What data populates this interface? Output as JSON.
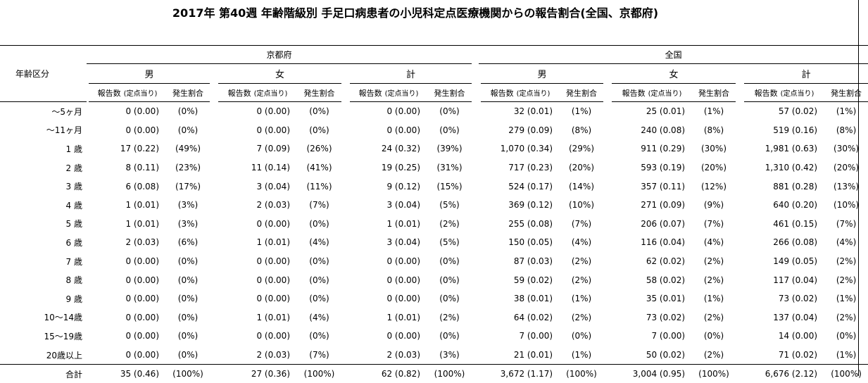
{
  "title": "2017年 第40週 年齢階級別 手足口病患者の小児科定点医療機関からの報告割合(全国、京都府)",
  "header": {
    "age_col": "年齢区分",
    "regions": [
      "京都府",
      "全国"
    ],
    "sexes": [
      "男",
      "女",
      "計"
    ],
    "count_col": "報告数",
    "count_note": "(定点当り)",
    "ratio_col": "発生割合"
  },
  "rows": [
    {
      "age": "〜5ヶ月",
      "kyoto": [
        [
          "0 (0.00)",
          "(0%)"
        ],
        [
          "0 (0.00)",
          "(0%)"
        ],
        [
          "0 (0.00)",
          "(0%)"
        ]
      ],
      "national": [
        [
          "32 (0.01)",
          "(1%)"
        ],
        [
          "25 (0.01)",
          "(1%)"
        ],
        [
          "57 (0.02)",
          "(1%)"
        ]
      ]
    },
    {
      "age": "〜11ヶ月",
      "kyoto": [
        [
          "0 (0.00)",
          "(0%)"
        ],
        [
          "0 (0.00)",
          "(0%)"
        ],
        [
          "0 (0.00)",
          "(0%)"
        ]
      ],
      "national": [
        [
          "279 (0.09)",
          "(8%)"
        ],
        [
          "240 (0.08)",
          "(8%)"
        ],
        [
          "519 (0.16)",
          "(8%)"
        ]
      ]
    },
    {
      "age": "1 歳",
      "kyoto": [
        [
          "17 (0.22)",
          "(49%)"
        ],
        [
          "7 (0.09)",
          "(26%)"
        ],
        [
          "24 (0.32)",
          "(39%)"
        ]
      ],
      "national": [
        [
          "1,070 (0.34)",
          "(29%)"
        ],
        [
          "911 (0.29)",
          "(30%)"
        ],
        [
          "1,981 (0.63)",
          "(30%)"
        ]
      ]
    },
    {
      "age": "2 歳",
      "kyoto": [
        [
          "8 (0.11)",
          "(23%)"
        ],
        [
          "11 (0.14)",
          "(41%)"
        ],
        [
          "19 (0.25)",
          "(31%)"
        ]
      ],
      "national": [
        [
          "717 (0.23)",
          "(20%)"
        ],
        [
          "593 (0.19)",
          "(20%)"
        ],
        [
          "1,310 (0.42)",
          "(20%)"
        ]
      ]
    },
    {
      "age": "3 歳",
      "kyoto": [
        [
          "6 (0.08)",
          "(17%)"
        ],
        [
          "3 (0.04)",
          "(11%)"
        ],
        [
          "9 (0.12)",
          "(15%)"
        ]
      ],
      "national": [
        [
          "524 (0.17)",
          "(14%)"
        ],
        [
          "357 (0.11)",
          "(12%)"
        ],
        [
          "881 (0.28)",
          "(13%)"
        ]
      ]
    },
    {
      "age": "4 歳",
      "kyoto": [
        [
          "1 (0.01)",
          "(3%)"
        ],
        [
          "2 (0.03)",
          "(7%)"
        ],
        [
          "3 (0.04)",
          "(5%)"
        ]
      ],
      "national": [
        [
          "369 (0.12)",
          "(10%)"
        ],
        [
          "271 (0.09)",
          "(9%)"
        ],
        [
          "640 (0.20)",
          "(10%)"
        ]
      ]
    },
    {
      "age": "5 歳",
      "kyoto": [
        [
          "1 (0.01)",
          "(3%)"
        ],
        [
          "0 (0.00)",
          "(0%)"
        ],
        [
          "1 (0.01)",
          "(2%)"
        ]
      ],
      "national": [
        [
          "255 (0.08)",
          "(7%)"
        ],
        [
          "206 (0.07)",
          "(7%)"
        ],
        [
          "461 (0.15)",
          "(7%)"
        ]
      ]
    },
    {
      "age": "6 歳",
      "kyoto": [
        [
          "2 (0.03)",
          "(6%)"
        ],
        [
          "1 (0.01)",
          "(4%)"
        ],
        [
          "3 (0.04)",
          "(5%)"
        ]
      ],
      "national": [
        [
          "150 (0.05)",
          "(4%)"
        ],
        [
          "116 (0.04)",
          "(4%)"
        ],
        [
          "266 (0.08)",
          "(4%)"
        ]
      ]
    },
    {
      "age": "7 歳",
      "kyoto": [
        [
          "0 (0.00)",
          "(0%)"
        ],
        [
          "0 (0.00)",
          "(0%)"
        ],
        [
          "0 (0.00)",
          "(0%)"
        ]
      ],
      "national": [
        [
          "87 (0.03)",
          "(2%)"
        ],
        [
          "62 (0.02)",
          "(2%)"
        ],
        [
          "149 (0.05)",
          "(2%)"
        ]
      ]
    },
    {
      "age": "8 歳",
      "kyoto": [
        [
          "0 (0.00)",
          "(0%)"
        ],
        [
          "0 (0.00)",
          "(0%)"
        ],
        [
          "0 (0.00)",
          "(0%)"
        ]
      ],
      "national": [
        [
          "59 (0.02)",
          "(2%)"
        ],
        [
          "58 (0.02)",
          "(2%)"
        ],
        [
          "117 (0.04)",
          "(2%)"
        ]
      ]
    },
    {
      "age": "9 歳",
      "kyoto": [
        [
          "0 (0.00)",
          "(0%)"
        ],
        [
          "0 (0.00)",
          "(0%)"
        ],
        [
          "0 (0.00)",
          "(0%)"
        ]
      ],
      "national": [
        [
          "38 (0.01)",
          "(1%)"
        ],
        [
          "35 (0.01)",
          "(1%)"
        ],
        [
          "73 (0.02)",
          "(1%)"
        ]
      ]
    },
    {
      "age": "10〜14歳",
      "kyoto": [
        [
          "0 (0.00)",
          "(0%)"
        ],
        [
          "1 (0.01)",
          "(4%)"
        ],
        [
          "1 (0.01)",
          "(2%)"
        ]
      ],
      "national": [
        [
          "64 (0.02)",
          "(2%)"
        ],
        [
          "73 (0.02)",
          "(2%)"
        ],
        [
          "137 (0.04)",
          "(2%)"
        ]
      ]
    },
    {
      "age": "15〜19歳",
      "kyoto": [
        [
          "0 (0.00)",
          "(0%)"
        ],
        [
          "0 (0.00)",
          "(0%)"
        ],
        [
          "0 (0.00)",
          "(0%)"
        ]
      ],
      "national": [
        [
          "7 (0.00)",
          "(0%)"
        ],
        [
          "7 (0.00)",
          "(0%)"
        ],
        [
          "14 (0.00)",
          "(0%)"
        ]
      ]
    },
    {
      "age": "20歳以上",
      "kyoto": [
        [
          "0 (0.00)",
          "(0%)"
        ],
        [
          "2 (0.03)",
          "(7%)"
        ],
        [
          "2 (0.03)",
          "(3%)"
        ]
      ],
      "national": [
        [
          "21 (0.01)",
          "(1%)"
        ],
        [
          "50 (0.02)",
          "(2%)"
        ],
        [
          "71 (0.02)",
          "(1%)"
        ]
      ]
    }
  ],
  "total": {
    "age": "合計",
    "kyoto": [
      [
        "35 (0.46)",
        "(100%)"
      ],
      [
        "27 (0.36)",
        "(100%)"
      ],
      [
        "62 (0.82)",
        "(100%)"
      ]
    ],
    "national": [
      [
        "3,672 (1.17)",
        "(100%)"
      ],
      [
        "3,004 (0.95)",
        "(100%)"
      ],
      [
        "6,676 (2.12)",
        "(100%)"
      ]
    ]
  }
}
